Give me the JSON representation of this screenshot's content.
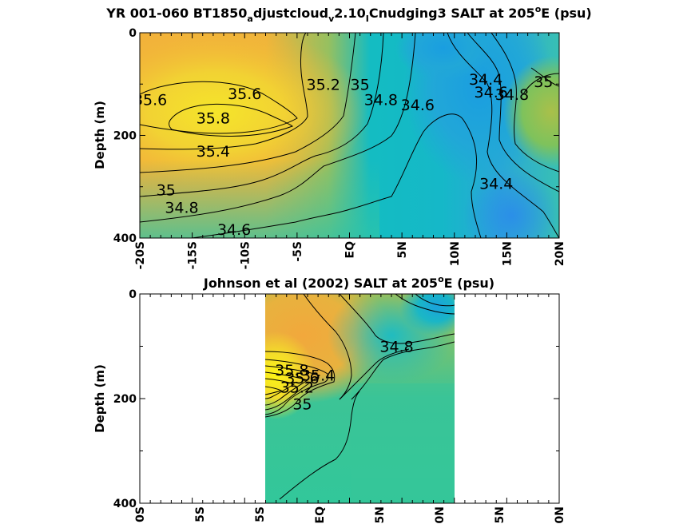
{
  "chart_data": [
    {
      "type": "heatmap",
      "title_main": "YR 001-060 BT1850",
      "title_sub1": "a",
      "title_mid1": "djustcloud",
      "title_sub2": "v",
      "title_mid2": "2.10",
      "title_sub3": "I",
      "title_mid3": "Cnudging3 SALT at 205",
      "title_sup": "o",
      "title_end": "E (psu)",
      "ylabel": "Depth (m)",
      "x_ticklabels": [
        "-20S",
        "-15S",
        "-10S",
        "-5S",
        "EQ",
        "5N",
        "10N",
        "15N",
        "20N"
      ],
      "y_ticklabels": [
        "0",
        "200",
        "400"
      ],
      "xlim": [
        -20,
        20
      ],
      "ylim": [
        0,
        400
      ],
      "contour_labels": [
        {
          "text": "35.6",
          "x": -19,
          "y": 130
        },
        {
          "text": "35.6",
          "x": -10,
          "y": 118
        },
        {
          "text": "35.8",
          "x": -13,
          "y": 166
        },
        {
          "text": "35.2",
          "x": -2.5,
          "y": 100
        },
        {
          "text": "35",
          "x": 1,
          "y": 100
        },
        {
          "text": "34.8",
          "x": 3,
          "y": 130
        },
        {
          "text": "34.6",
          "x": 6.5,
          "y": 140
        },
        {
          "text": "35.4",
          "x": -13,
          "y": 230
        },
        {
          "text": "35",
          "x": -17.5,
          "y": 306
        },
        {
          "text": "34.8",
          "x": -16,
          "y": 340
        },
        {
          "text": "34.6",
          "x": -11,
          "y": 383
        },
        {
          "text": "34.4",
          "x": 13,
          "y": 90
        },
        {
          "text": "34.6",
          "x": 13.5,
          "y": 115
        },
        {
          "text": "34.8",
          "x": 15.5,
          "y": 120
        },
        {
          "text": "35",
          "x": 18.5,
          "y": 95
        },
        {
          "text": "34.4",
          "x": 14,
          "y": 293
        }
      ]
    },
    {
      "type": "heatmap",
      "title_main": "Johnson et al (2002) SALT at 205",
      "title_sup": "o",
      "title_end": "E (psu)",
      "ylabel": "Depth (m)",
      "x_ticklabels": [
        "0S",
        "5S",
        "5S",
        "EQ",
        "5N",
        "0N",
        "5N",
        "0N"
      ],
      "y_ticklabels": [
        "0",
        "200",
        "400"
      ],
      "xlim": [
        -20,
        20
      ],
      "ylim": [
        0,
        400
      ],
      "data_xrange": [
        -8,
        10
      ],
      "contour_labels": [
        {
          "text": "34.8",
          "x": 4.5,
          "y": 100
        },
        {
          "text": "35",
          "x": -4.5,
          "y": 210
        },
        {
          "text": "35.2",
          "x": -5,
          "y": 178
        },
        {
          "text": "35.4",
          "x": -3,
          "y": 155
        },
        {
          "text": "35.6",
          "x": -4.5,
          "y": 160
        },
        {
          "text": "35.8",
          "x": -5.5,
          "y": 145
        }
      ]
    }
  ]
}
